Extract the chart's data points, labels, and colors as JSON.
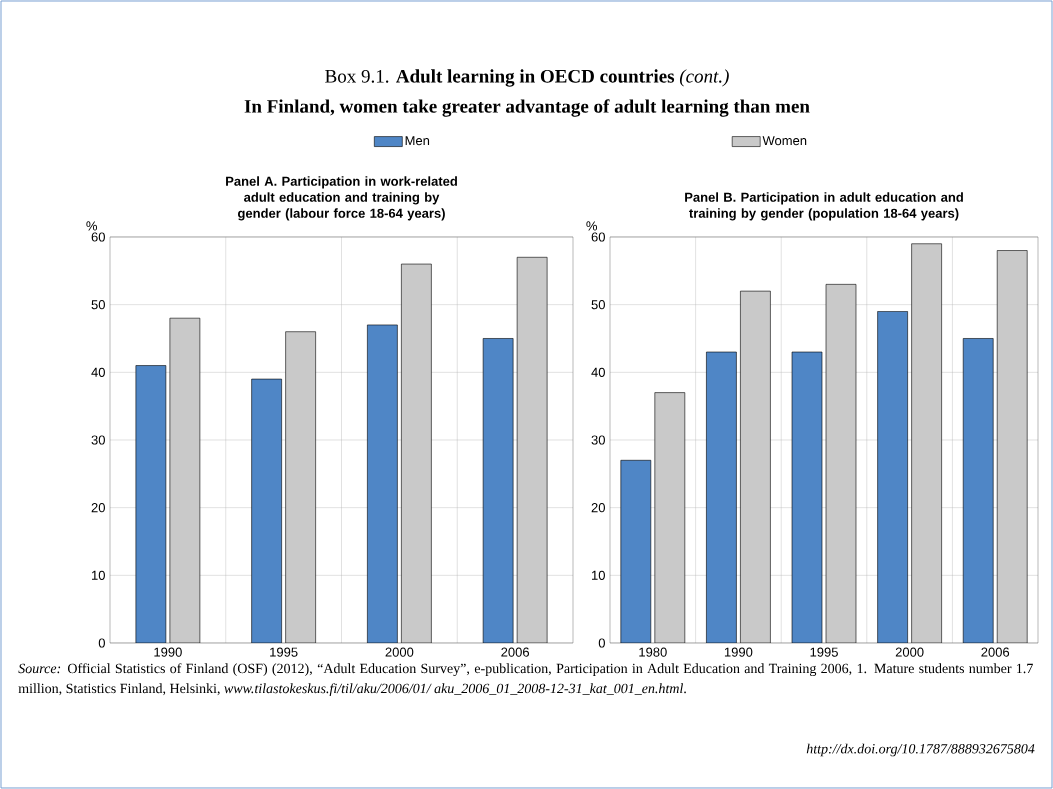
{
  "chart_data": [
    {
      "type": "bar",
      "title": "Panel A. Participation in work-related adult education and training by gender (labour force 18-64 years)",
      "ylabel": "%",
      "categories": [
        "1990",
        "1995",
        "2000",
        "2006"
      ],
      "series": [
        {
          "name": "Men",
          "color": "#4f86c6",
          "values": [
            41,
            39,
            47,
            45
          ]
        },
        {
          "name": "Women",
          "color": "#c9c9c9",
          "values": [
            48,
            46,
            56,
            57
          ]
        }
      ],
      "ylim": [
        0,
        60
      ],
      "yticks": [
        0,
        10,
        20,
        30,
        40,
        50,
        60
      ],
      "grid": true,
      "legend": "top",
      "annotations": [
        "Box 9.1. **Adult learning in OECD countries** *(cont.)*",
        "In Finland, women take greater advantage of adult learning than men"
      ]
    },
    {
      "type": "bar",
      "title": "Panel B. Participation in adult education and training by gender (population 18-64 years)",
      "ylabel": "%",
      "categories": [
        "1980",
        "1990",
        "1995",
        "2000",
        "2006"
      ],
      "series": [
        {
          "color": "#4f86c6",
          "values": [
            27,
            43,
            43,
            49,
            45
          ]
        },
        {
          "color": "#c9c9c9",
          "values": [
            37,
            52,
            53,
            59,
            58
          ]
        }
      ],
      "ylim": [
        0,
        60
      ],
      "yticks": [
        0,
        10,
        20,
        30,
        40,
        50,
        60
      ],
      "grid": true,
      "annotations": [
        "*Source:* Official Statistics of Finland (OSF) (2012), “Adult Education Survey”, e-publication, Participation in Adult Education and Training 2006, 1. Mature students number 1.7 million, Statistics Finland, Helsinki, *www.tilastokeskus.fi/til/aku/2006/01/ aku_2006_01_2008-12-31_kat_001_en.html*.",
        "*http://dx.doi.org/10.1787/888932675804*"
      ]
    }
  ]
}
